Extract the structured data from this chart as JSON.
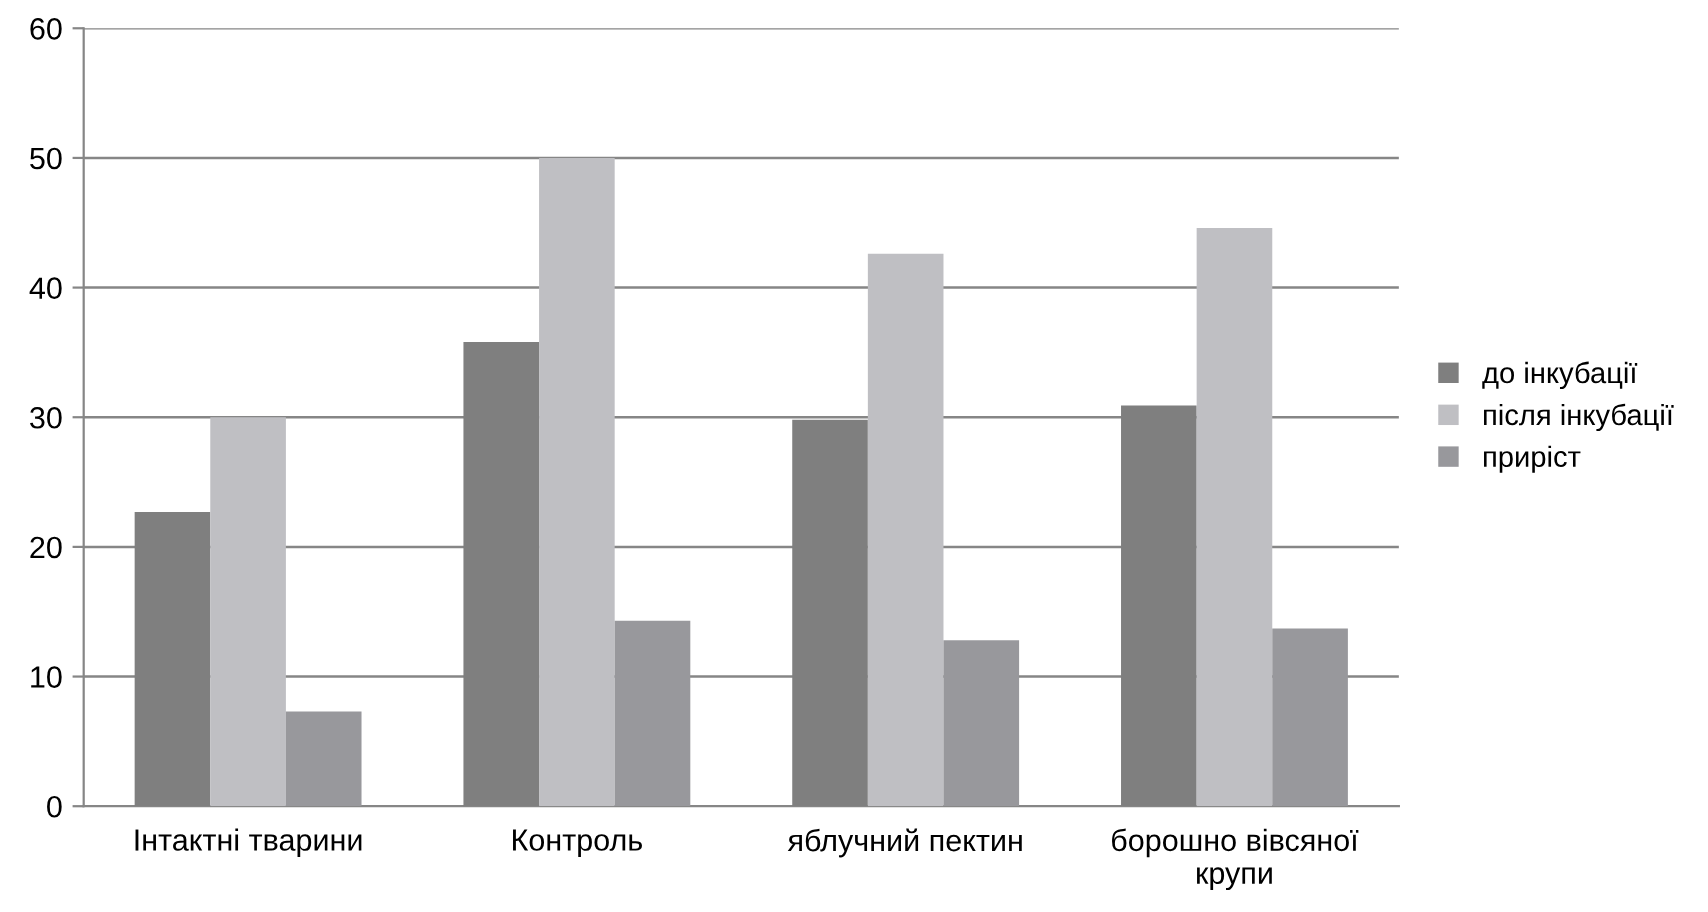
{
  "chart_data": {
    "type": "bar",
    "categories": [
      "Інтактні тварини",
      "Контроль",
      "яблучний пектин",
      "борошно вівсяної крупи"
    ],
    "series": [
      {
        "name": "до інкубації",
        "color": "#7f7f7f",
        "values": [
          22.7,
          35.8,
          29.8,
          30.9
        ]
      },
      {
        "name": "після інкубації",
        "color": "#bfbfc3",
        "values": [
          30.0,
          50.0,
          42.6,
          44.6
        ]
      },
      {
        "name": "приріст",
        "color": "#98989c",
        "values": [
          7.3,
          14.3,
          12.8,
          13.7
        ]
      }
    ],
    "ylim": [
      0,
      60
    ],
    "yticks": [
      0,
      10,
      20,
      30,
      40,
      50,
      60
    ],
    "grid": "y",
    "legend": "right"
  }
}
